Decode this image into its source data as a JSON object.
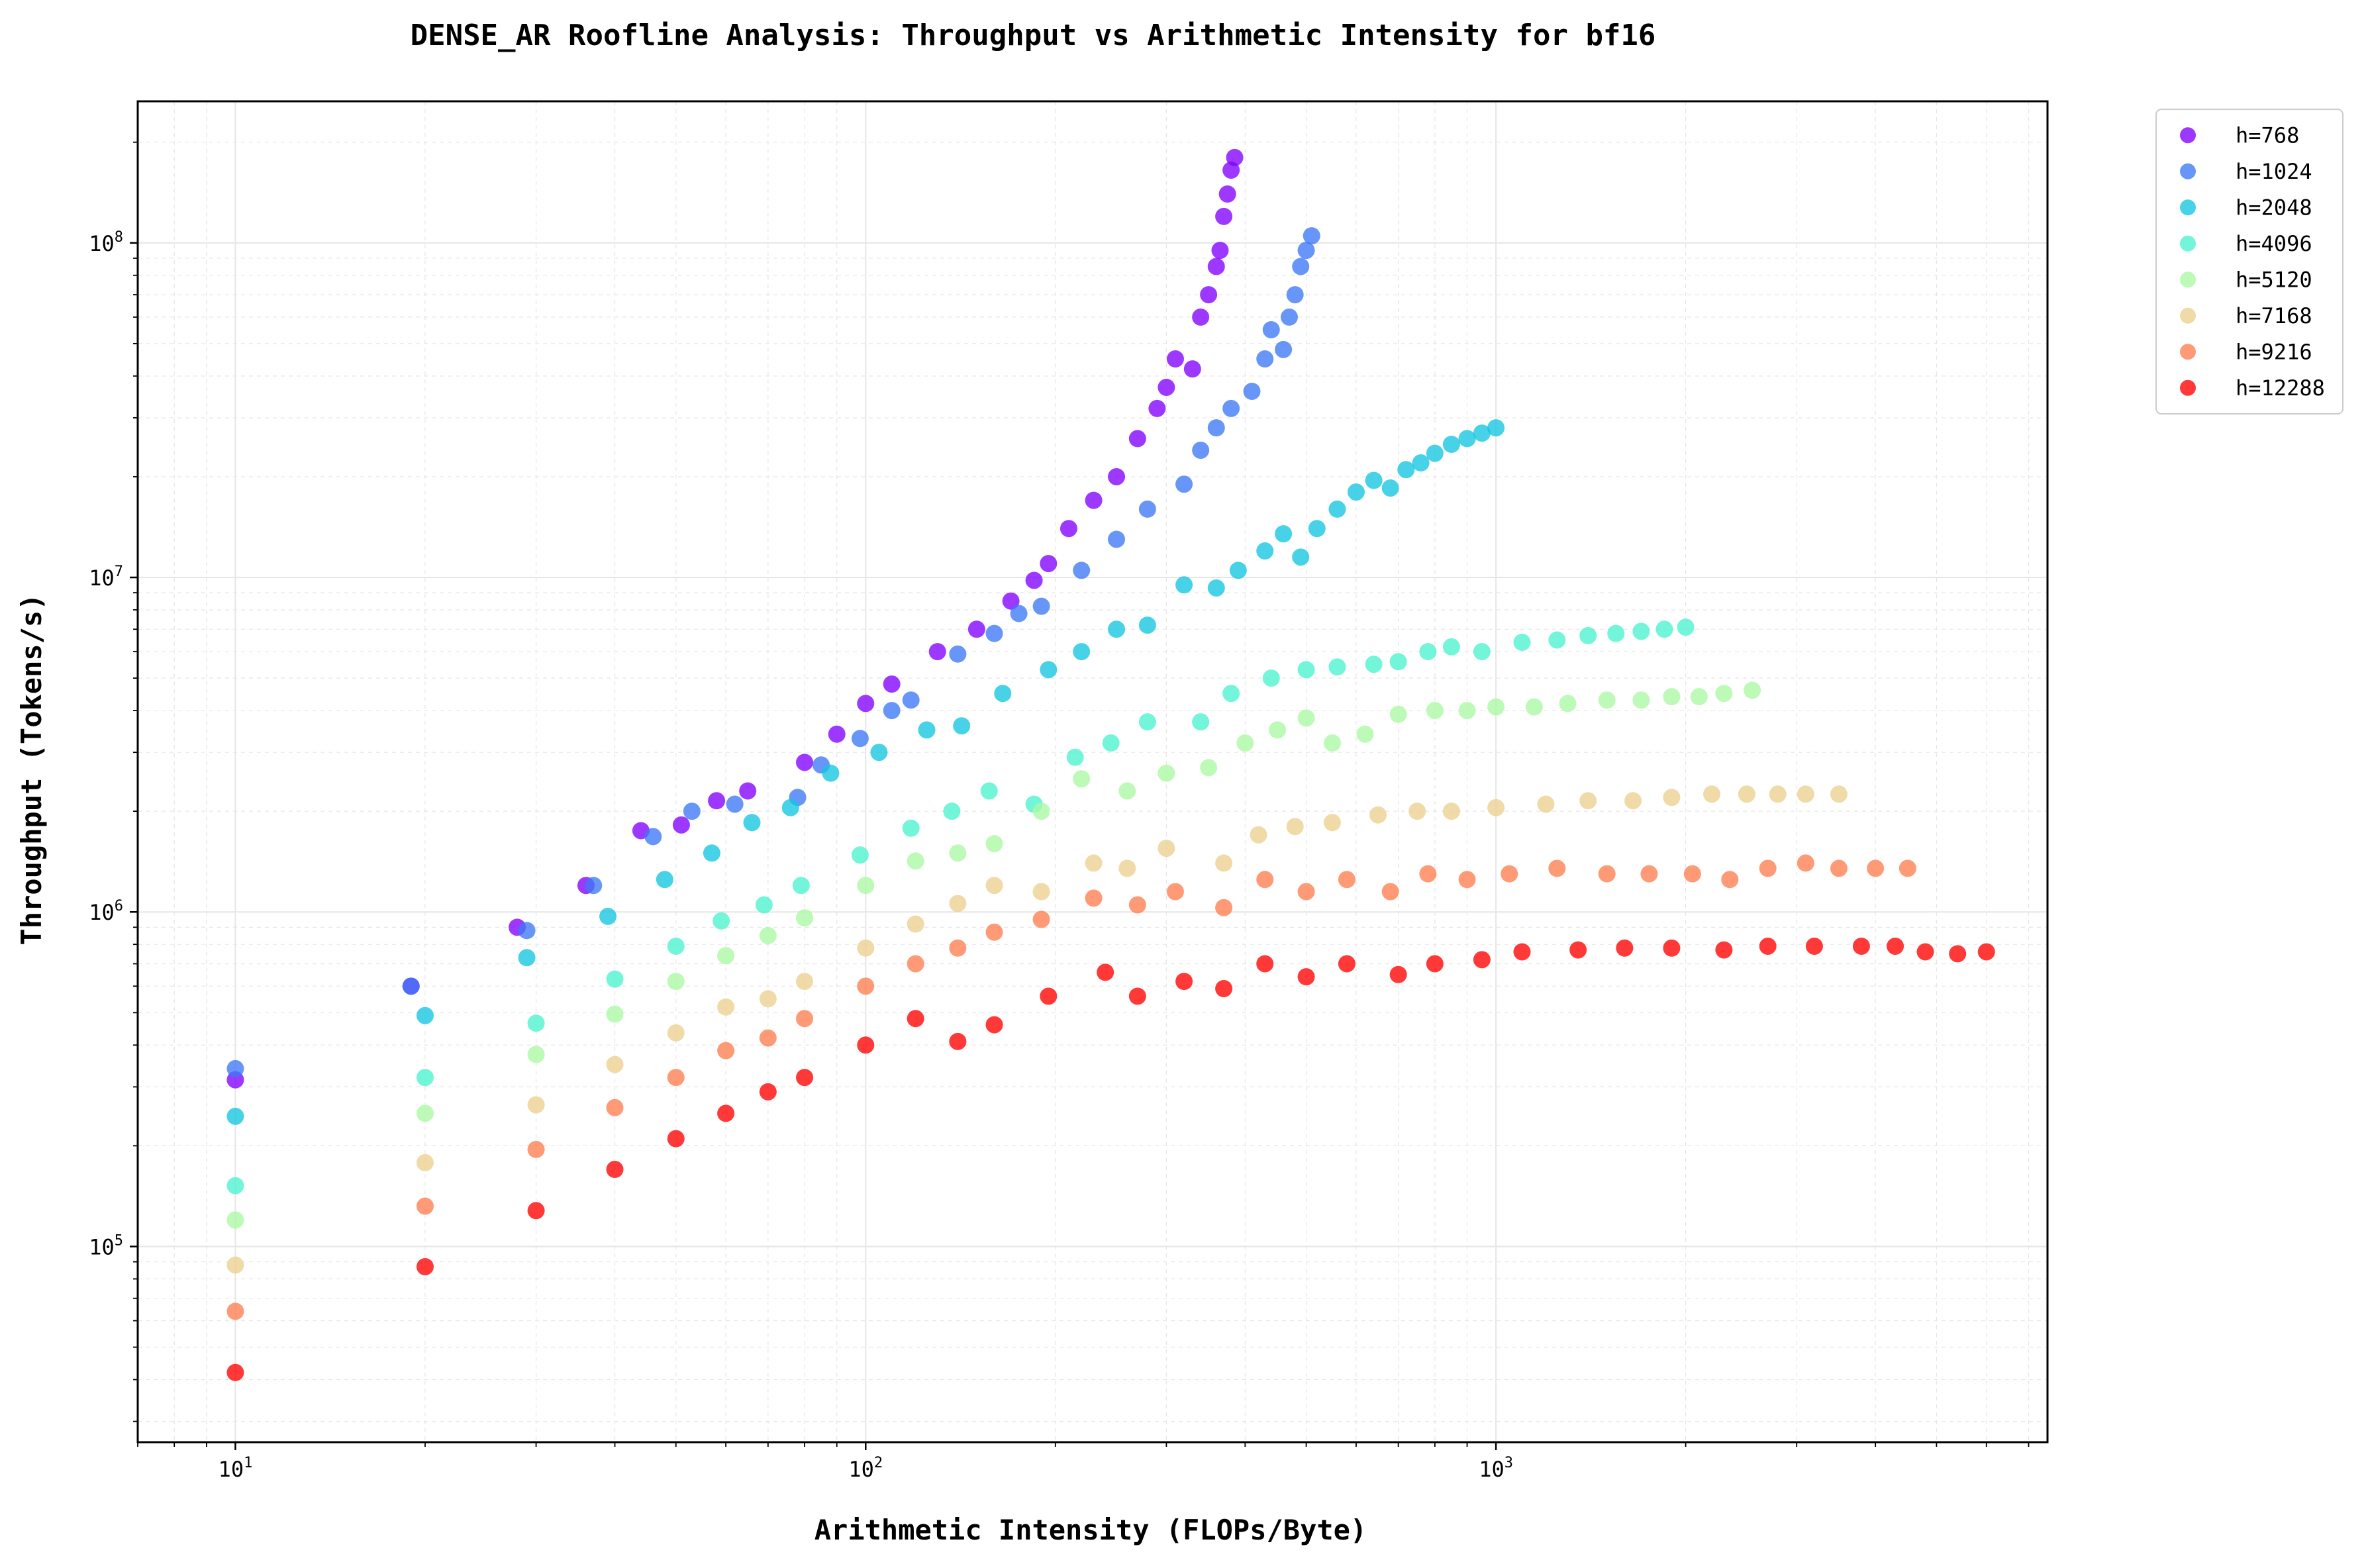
{
  "chart_data": {
    "type": "scatter",
    "title": "DENSE_AR Roofline Analysis: Throughput vs Arithmetic Intensity for bf16",
    "xlabel": "Arithmetic Intensity (FLOPs/Byte)",
    "ylabel": "Throughput (Tokens/s)",
    "x_scale": "log",
    "y_scale": "log",
    "xlim": [
      7,
      7500
    ],
    "ylim": [
      26000,
      265000000
    ],
    "x_ticks": [
      10,
      100,
      1000
    ],
    "x_tick_labels": [
      {
        "base": "10",
        "exp": "1"
      },
      {
        "base": "10",
        "exp": "2"
      },
      {
        "base": "10",
        "exp": "3"
      }
    ],
    "y_ticks": [
      100000,
      1000000,
      10000000,
      100000000
    ],
    "y_tick_labels": [
      {
        "base": "10",
        "exp": "5"
      },
      {
        "base": "10",
        "exp": "6"
      },
      {
        "base": "10",
        "exp": "7"
      },
      {
        "base": "10",
        "exp": "8"
      }
    ],
    "grid": true,
    "legend_position": "outside-right-top",
    "series": [
      {
        "name": "h=768",
        "color": "#8000ff",
        "points": [
          [
            10,
            315000
          ],
          [
            19,
            600000
          ],
          [
            28,
            900000
          ],
          [
            36,
            1200000
          ],
          [
            44,
            1750000
          ],
          [
            51,
            1820000
          ],
          [
            58,
            2150000
          ],
          [
            65,
            2300000
          ],
          [
            80,
            2800000
          ],
          [
            90,
            3400000
          ],
          [
            100,
            4200000
          ],
          [
            110,
            4800000
          ],
          [
            130,
            6000000
          ],
          [
            150,
            7000000
          ],
          [
            170,
            8500000
          ],
          [
            185,
            9800000
          ],
          [
            195,
            11000000
          ],
          [
            210,
            14000000
          ],
          [
            230,
            17000000
          ],
          [
            250,
            20000000
          ],
          [
            270,
            26000000
          ],
          [
            290,
            32000000
          ],
          [
            300,
            37000000
          ],
          [
            310,
            45000000
          ],
          [
            330,
            42000000
          ],
          [
            340,
            60000000
          ],
          [
            350,
            70000000
          ],
          [
            360,
            85000000
          ],
          [
            365,
            95000000
          ],
          [
            370,
            120000000
          ],
          [
            375,
            140000000
          ],
          [
            380,
            165000000
          ],
          [
            385,
            180000000
          ]
        ]
      },
      {
        "name": "h=1024",
        "color": "#3c78f6",
        "points": [
          [
            10,
            340000
          ],
          [
            19,
            600000
          ],
          [
            29,
            880000
          ],
          [
            37,
            1200000
          ],
          [
            46,
            1680000
          ],
          [
            53,
            2000000
          ],
          [
            62,
            2100000
          ],
          [
            78,
            2200000
          ],
          [
            85,
            2750000
          ],
          [
            98,
            3300000
          ],
          [
            110,
            4000000
          ],
          [
            118,
            4300000
          ],
          [
            140,
            5900000
          ],
          [
            160,
            6800000
          ],
          [
            175,
            7800000
          ],
          [
            190,
            8200000
          ],
          [
            220,
            10500000
          ],
          [
            250,
            13000000
          ],
          [
            280,
            16000000
          ],
          [
            320,
            19000000
          ],
          [
            340,
            24000000
          ],
          [
            360,
            28000000
          ],
          [
            380,
            32000000
          ],
          [
            410,
            36000000
          ],
          [
            430,
            45000000
          ],
          [
            440,
            55000000
          ],
          [
            460,
            48000000
          ],
          [
            470,
            60000000
          ],
          [
            480,
            70000000
          ],
          [
            490,
            85000000
          ],
          [
            500,
            95000000
          ],
          [
            510,
            105000000
          ]
        ]
      },
      {
        "name": "h=2048",
        "color": "#13c5e0",
        "points": [
          [
            10,
            245000
          ],
          [
            20,
            490000
          ],
          [
            29,
            730000
          ],
          [
            39,
            970000
          ],
          [
            48,
            1250000
          ],
          [
            57,
            1500000
          ],
          [
            66,
            1850000
          ],
          [
            76,
            2050000
          ],
          [
            88,
            2600000
          ],
          [
            105,
            3000000
          ],
          [
            125,
            3500000
          ],
          [
            142,
            3600000
          ],
          [
            165,
            4500000
          ],
          [
            195,
            5300000
          ],
          [
            220,
            6000000
          ],
          [
            250,
            7000000
          ],
          [
            280,
            7200000
          ],
          [
            320,
            9500000
          ],
          [
            360,
            9300000
          ],
          [
            390,
            10500000
          ],
          [
            430,
            12000000
          ],
          [
            460,
            13500000
          ],
          [
            490,
            11500000
          ],
          [
            520,
            14000000
          ],
          [
            560,
            16000000
          ],
          [
            600,
            18000000
          ],
          [
            640,
            19500000
          ],
          [
            680,
            18500000
          ],
          [
            720,
            21000000
          ],
          [
            760,
            22000000
          ],
          [
            800,
            23500000
          ],
          [
            850,
            25000000
          ],
          [
            900,
            26000000
          ],
          [
            950,
            27000000
          ],
          [
            1000,
            28000000
          ]
        ]
      },
      {
        "name": "h=4096",
        "color": "#4cf2ce",
        "points": [
          [
            10,
            152000
          ],
          [
            20,
            320000
          ],
          [
            30,
            465000
          ],
          [
            40,
            630000
          ],
          [
            50,
            790000
          ],
          [
            59,
            940000
          ],
          [
            69,
            1050000
          ],
          [
            79,
            1200000
          ],
          [
            98,
            1480000
          ],
          [
            118,
            1780000
          ],
          [
            137,
            2000000
          ],
          [
            157,
            2300000
          ],
          [
            185,
            2100000
          ],
          [
            215,
            2900000
          ],
          [
            245,
            3200000
          ],
          [
            280,
            3700000
          ],
          [
            340,
            3700000
          ],
          [
            380,
            4500000
          ],
          [
            440,
            5000000
          ],
          [
            500,
            5300000
          ],
          [
            560,
            5400000
          ],
          [
            640,
            5500000
          ],
          [
            700,
            5600000
          ],
          [
            780,
            6000000
          ],
          [
            850,
            6200000
          ],
          [
            950,
            6000000
          ],
          [
            1100,
            6400000
          ],
          [
            1250,
            6500000
          ],
          [
            1400,
            6700000
          ],
          [
            1550,
            6800000
          ],
          [
            1700,
            6900000
          ],
          [
            1850,
            7000000
          ],
          [
            2000,
            7100000
          ]
        ]
      },
      {
        "name": "h=5120",
        "color": "#aaf8a3",
        "points": [
          [
            10,
            120000
          ],
          [
            20,
            250000
          ],
          [
            30,
            375000
          ],
          [
            40,
            495000
          ],
          [
            50,
            620000
          ],
          [
            60,
            740000
          ],
          [
            70,
            850000
          ],
          [
            80,
            960000
          ],
          [
            100,
            1200000
          ],
          [
            120,
            1420000
          ],
          [
            140,
            1500000
          ],
          [
            160,
            1600000
          ],
          [
            190,
            2000000
          ],
          [
            220,
            2500000
          ],
          [
            260,
            2300000
          ],
          [
            300,
            2600000
          ],
          [
            350,
            2700000
          ],
          [
            400,
            3200000
          ],
          [
            450,
            3500000
          ],
          [
            500,
            3800000
          ],
          [
            550,
            3200000
          ],
          [
            620,
            3400000
          ],
          [
            700,
            3900000
          ],
          [
            800,
            4000000
          ],
          [
            900,
            4000000
          ],
          [
            1000,
            4100000
          ],
          [
            1150,
            4100000
          ],
          [
            1300,
            4200000
          ],
          [
            1500,
            4300000
          ],
          [
            1700,
            4300000
          ],
          [
            1900,
            4400000
          ],
          [
            2100,
            4400000
          ],
          [
            2300,
            4500000
          ],
          [
            2550,
            4600000
          ]
        ]
      },
      {
        "name": "h=7168",
        "color": "#ecd08f",
        "points": [
          [
            10,
            88000
          ],
          [
            20,
            178000
          ],
          [
            30,
            265000
          ],
          [
            40,
            350000
          ],
          [
            50,
            435000
          ],
          [
            60,
            520000
          ],
          [
            70,
            550000
          ],
          [
            80,
            620000
          ],
          [
            100,
            780000
          ],
          [
            120,
            920000
          ],
          [
            140,
            1060000
          ],
          [
            160,
            1200000
          ],
          [
            190,
            1150000
          ],
          [
            230,
            1400000
          ],
          [
            260,
            1350000
          ],
          [
            300,
            1550000
          ],
          [
            370,
            1400000
          ],
          [
            420,
            1700000
          ],
          [
            480,
            1800000
          ],
          [
            550,
            1850000
          ],
          [
            650,
            1950000
          ],
          [
            750,
            2000000
          ],
          [
            850,
            2000000
          ],
          [
            1000,
            2050000
          ],
          [
            1200,
            2100000
          ],
          [
            1400,
            2150000
          ],
          [
            1650,
            2150000
          ],
          [
            1900,
            2200000
          ],
          [
            2200,
            2250000
          ],
          [
            2500,
            2250000
          ],
          [
            2800,
            2250000
          ],
          [
            3100,
            2250000
          ],
          [
            3500,
            2250000
          ]
        ]
      },
      {
        "name": "h=9216",
        "color": "#ff7e4f",
        "points": [
          [
            10,
            64000
          ],
          [
            20,
            132000
          ],
          [
            30,
            195000
          ],
          [
            40,
            260000
          ],
          [
            50,
            320000
          ],
          [
            60,
            385000
          ],
          [
            70,
            420000
          ],
          [
            80,
            480000
          ],
          [
            100,
            600000
          ],
          [
            120,
            700000
          ],
          [
            140,
            780000
          ],
          [
            160,
            870000
          ],
          [
            190,
            950000
          ],
          [
            230,
            1100000
          ],
          [
            270,
            1050000
          ],
          [
            310,
            1150000
          ],
          [
            370,
            1030000
          ],
          [
            430,
            1250000
          ],
          [
            500,
            1150000
          ],
          [
            580,
            1250000
          ],
          [
            680,
            1150000
          ],
          [
            780,
            1300000
          ],
          [
            900,
            1250000
          ],
          [
            1050,
            1300000
          ],
          [
            1250,
            1350000
          ],
          [
            1500,
            1300000
          ],
          [
            1750,
            1300000
          ],
          [
            2050,
            1300000
          ],
          [
            2350,
            1250000
          ],
          [
            2700,
            1350000
          ],
          [
            3100,
            1400000
          ],
          [
            3500,
            1350000
          ],
          [
            4000,
            1350000
          ],
          [
            4500,
            1350000
          ]
        ]
      },
      {
        "name": "h=12288",
        "color": "#ff0000",
        "points": [
          [
            10,
            42000
          ],
          [
            20,
            87000
          ],
          [
            30,
            128000
          ],
          [
            40,
            170000
          ],
          [
            50,
            210000
          ],
          [
            60,
            250000
          ],
          [
            70,
            290000
          ],
          [
            80,
            320000
          ],
          [
            100,
            400000
          ],
          [
            120,
            480000
          ],
          [
            140,
            410000
          ],
          [
            160,
            460000
          ],
          [
            195,
            560000
          ],
          [
            240,
            660000
          ],
          [
            270,
            560000
          ],
          [
            320,
            620000
          ],
          [
            370,
            590000
          ],
          [
            430,
            700000
          ],
          [
            500,
            640000
          ],
          [
            580,
            700000
          ],
          [
            700,
            650000
          ],
          [
            800,
            700000
          ],
          [
            950,
            720000
          ],
          [
            1100,
            760000
          ],
          [
            1350,
            770000
          ],
          [
            1600,
            780000
          ],
          [
            1900,
            780000
          ],
          [
            2300,
            770000
          ],
          [
            2700,
            790000
          ],
          [
            3200,
            790000
          ],
          [
            3800,
            790000
          ],
          [
            4300,
            790000
          ],
          [
            4800,
            760000
          ],
          [
            5400,
            750000
          ],
          [
            6000,
            760000
          ]
        ]
      }
    ]
  }
}
